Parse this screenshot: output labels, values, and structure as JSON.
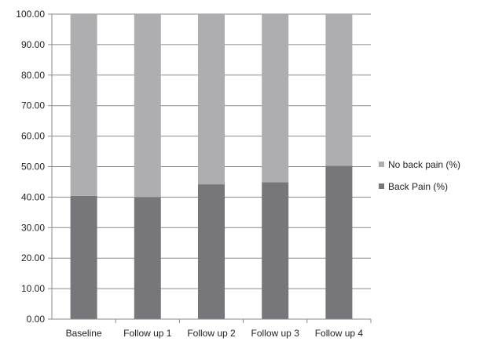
{
  "chart_data": {
    "type": "bar",
    "stacked": true,
    "categories": [
      "Baseline",
      "Follow up 1",
      "Follow up 2",
      "Follow up 3",
      "Follow up 4"
    ],
    "series": [
      {
        "name": "Back Pain (%)",
        "color": "#77777b",
        "values": [
          40.4,
          40.0,
          44.2,
          44.9,
          50.3
        ]
      },
      {
        "name": "No back pain (%)",
        "color": "#aeaeb0",
        "values": [
          59.6,
          60.0,
          55.8,
          55.1,
          49.7
        ]
      }
    ],
    "ylim": [
      0,
      100
    ],
    "yticks": [
      "0.00",
      "10.00",
      "20.00",
      "30.00",
      "40.00",
      "50.00",
      "60.00",
      "70.00",
      "80.00",
      "90.00",
      "100.00"
    ],
    "ytick_values": [
      0,
      10,
      20,
      30,
      40,
      50,
      60,
      70,
      80,
      90,
      100
    ],
    "grid": true,
    "legend": {
      "placement": "right",
      "entries": [
        "No back pain (%)",
        "Back Pain (%)"
      ]
    },
    "title": "",
    "xlabel": "",
    "ylabel": ""
  }
}
